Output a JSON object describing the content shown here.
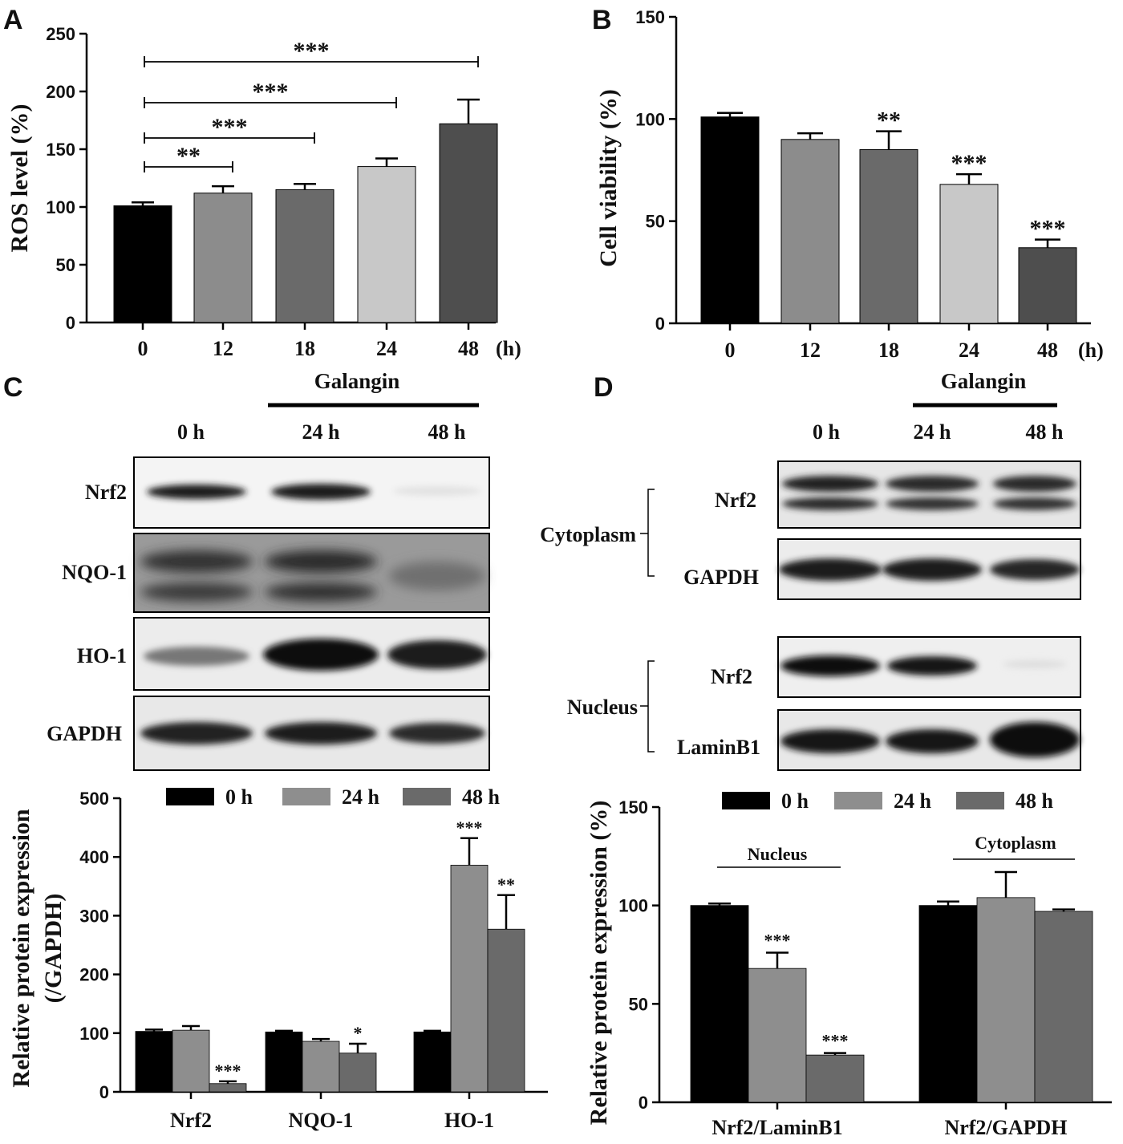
{
  "panels": {
    "A": "A",
    "B": "B",
    "C": "C",
    "D": "D"
  },
  "galangin_label": "Galangin",
  "unit_label": "(h)",
  "blot_c": {
    "lanes": [
      "0 h",
      "24 h",
      "48 h"
    ],
    "rows": [
      "Nrf2",
      "NQO-1",
      "HO-1",
      "GAPDH"
    ]
  },
  "blot_d": {
    "lanes": [
      "0 h",
      "24 h",
      "48 h"
    ],
    "groups": [
      {
        "name": "Cytoplasm",
        "rows": [
          "Nrf2",
          "GAPDH"
        ]
      },
      {
        "name": "Nucleus",
        "rows": [
          "Nrf2",
          "LaminB1"
        ]
      }
    ]
  },
  "legend": [
    "0 h",
    "24 h",
    "48 h"
  ],
  "group_labels_d": [
    "Nucleus",
    "Cytoplasm"
  ],
  "colors": {
    "black": "#000000",
    "g1": "#8c8c8c",
    "g2": "#6a6a6a",
    "g3": "#c8c8c8",
    "g4": "#4e4e4e",
    "legend24": "#8e8e8e",
    "legend48": "#6a6a6a"
  },
  "chart_data": [
    {
      "id": "A",
      "type": "bar",
      "ylabel": "ROS level  (%)",
      "ylim": [
        0,
        250
      ],
      "yticks": [
        0,
        50,
        100,
        150,
        200,
        250
      ],
      "categories": [
        "0",
        "12",
        "18",
        "24",
        "48"
      ],
      "values": [
        101,
        112,
        115,
        135,
        172
      ],
      "errors": [
        3,
        6,
        5,
        7,
        21
      ],
      "colors": [
        "#000000",
        "#8c8c8c",
        "#6a6a6a",
        "#c8c8c8",
        "#4e4e4e"
      ],
      "comparisons": [
        {
          "from": "0",
          "to": "12",
          "label": "**"
        },
        {
          "from": "0",
          "to": "18",
          "label": "***"
        },
        {
          "from": "0",
          "to": "24",
          "label": "***"
        },
        {
          "from": "0",
          "to": "48",
          "label": "***"
        }
      ]
    },
    {
      "id": "B",
      "type": "bar",
      "ylabel": "Cell viability (%)",
      "ylim": [
        0,
        150
      ],
      "yticks": [
        0,
        50,
        100,
        150
      ],
      "categories": [
        "0",
        "12",
        "18",
        "24",
        "48"
      ],
      "values": [
        101,
        90,
        85,
        68,
        37
      ],
      "errors": [
        2,
        3,
        9,
        5,
        4
      ],
      "colors": [
        "#000000",
        "#8c8c8c",
        "#6a6a6a",
        "#c8c8c8",
        "#4e4e4e"
      ],
      "annotations": [
        "",
        "",
        "**",
        "***",
        "***"
      ]
    },
    {
      "id": "C",
      "type": "bar",
      "ylabel": [
        "Relative protein expression",
        "(/GAPDH)"
      ],
      "ylim": [
        0,
        500
      ],
      "yticks": [
        0,
        100,
        200,
        300,
        400,
        500
      ],
      "categories": [
        "Nrf2",
        "NQO-1",
        "HO-1"
      ],
      "series": [
        {
          "name": "0 h",
          "values": [
            103,
            102,
            102
          ],
          "errors": [
            3,
            2,
            2
          ],
          "annotations": [
            "",
            "",
            ""
          ]
        },
        {
          "name": "24 h",
          "values": [
            105,
            86,
            386
          ],
          "errors": [
            7,
            4,
            46
          ],
          "annotations": [
            "",
            "",
            "***"
          ]
        },
        {
          "name": "48 h",
          "values": [
            14,
            66,
            277
          ],
          "errors": [
            4,
            16,
            58
          ],
          "annotations": [
            "***",
            "*",
            "**"
          ]
        }
      ]
    },
    {
      "id": "D",
      "type": "bar",
      "ylabel": "Relative protein expression (%)",
      "ylim": [
        0,
        150
      ],
      "yticks": [
        0,
        50,
        100,
        150
      ],
      "categories": [
        "Nrf2/LaminB1",
        "Nrf2/GAPDH"
      ],
      "series": [
        {
          "name": "0 h",
          "values": [
            100,
            100
          ],
          "errors": [
            1,
            2
          ],
          "annotations": [
            "",
            ""
          ]
        },
        {
          "name": "24 h",
          "values": [
            68,
            104
          ],
          "errors": [
            8,
            13
          ],
          "annotations": [
            "***",
            ""
          ]
        },
        {
          "name": "48 h",
          "values": [
            24,
            97
          ],
          "errors": [
            1,
            1
          ],
          "annotations": [
            "***",
            ""
          ]
        }
      ]
    }
  ]
}
